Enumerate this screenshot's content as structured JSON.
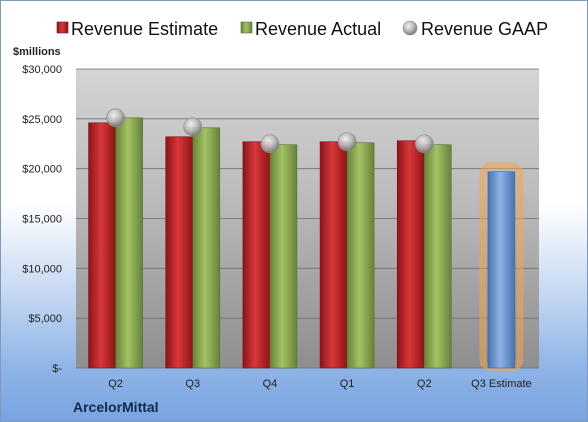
{
  "company": "ArcelorMittal",
  "colors": {
    "estimate": "#c0282b",
    "actual": "#8fb052",
    "gaap": "#bfbfbf",
    "projected": "#6f98d6",
    "highlight": "#f4a54a"
  },
  "chart_data": {
    "type": "bar",
    "unit_label": "$millions",
    "categories": [
      "Q2",
      "Q3",
      "Q4",
      "Q1",
      "Q2",
      "Q3 Estimate"
    ],
    "series": [
      {
        "name": "Revenue Estimate",
        "values": [
          24600,
          23200,
          22700,
          22700,
          22800,
          19700
        ]
      },
      {
        "name": "Revenue Actual",
        "values": [
          25100,
          24100,
          22400,
          22600,
          22400,
          null
        ]
      },
      {
        "name": "Revenue GAAP",
        "values": [
          25100,
          24200,
          22500,
          22700,
          22500,
          null
        ]
      }
    ],
    "yticks": [
      {
        "value": 0,
        "label": "$-"
      },
      {
        "value": 5000,
        "label": "$5,000"
      },
      {
        "value": 10000,
        "label": "$10,000"
      },
      {
        "value": 15000,
        "label": "$15,000"
      },
      {
        "value": 20000,
        "label": "$20,000"
      },
      {
        "value": 25000,
        "label": "$25,000"
      },
      {
        "value": 30000,
        "label": "$30,000"
      }
    ],
    "ylim": [
      0,
      30000
    ],
    "grid": true,
    "legend": "top"
  }
}
